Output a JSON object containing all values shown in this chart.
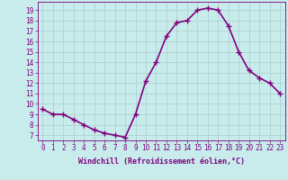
{
  "x": [
    0,
    1,
    2,
    3,
    4,
    5,
    6,
    7,
    8,
    9,
    10,
    11,
    12,
    13,
    14,
    15,
    16,
    17,
    18,
    19,
    20,
    21,
    22,
    23
  ],
  "y": [
    9.5,
    9.0,
    9.0,
    8.5,
    8.0,
    7.5,
    7.2,
    7.0,
    6.8,
    9.0,
    12.2,
    14.0,
    16.5,
    17.8,
    18.0,
    19.0,
    19.2,
    19.0,
    17.5,
    15.0,
    13.2,
    12.5,
    12.0,
    11.0
  ],
  "line_color": "#800080",
  "marker": "+",
  "marker_size": 4,
  "bg_color": "#c8ecec",
  "grid_color": "#aacccc",
  "yticks": [
    7,
    8,
    9,
    10,
    11,
    12,
    13,
    14,
    15,
    16,
    17,
    18,
    19
  ],
  "xlabel_label": "Windchill (Refroidissement éolien,°C)",
  "ylim": [
    6.5,
    19.8
  ],
  "xlim": [
    -0.5,
    23.5
  ],
  "line_width": 1.2,
  "tick_fontsize": 5.5,
  "xlabel_fontsize": 6.0
}
